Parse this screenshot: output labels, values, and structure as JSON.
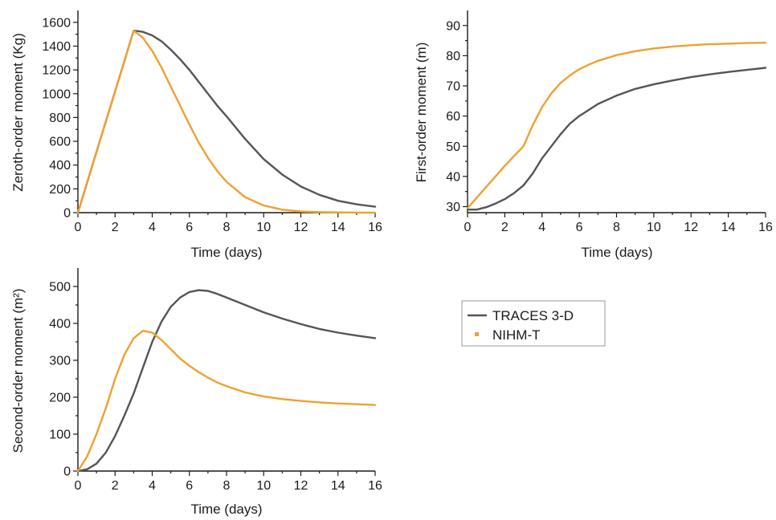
{
  "chart_data": [
    {
      "type": "line",
      "xlabel": "Time (days)",
      "ylabel": "Zeroth-order moment (Kg)",
      "xlim": [
        0,
        16
      ],
      "ylim": [
        0,
        1700
      ],
      "xticks": [
        0,
        2,
        4,
        6,
        8,
        10,
        12,
        14,
        16
      ],
      "yticks": [
        0,
        200,
        400,
        600,
        800,
        1000,
        1200,
        1400,
        1600
      ],
      "series": [
        {
          "name": "TRACES 3-D",
          "color": "#555555",
          "x": [
            0,
            1,
            2,
            3,
            3.5,
            4,
            4.5,
            5,
            5.5,
            6,
            6.5,
            7,
            7.5,
            8,
            9,
            10,
            11,
            12,
            13,
            14,
            15,
            16
          ],
          "y": [
            0,
            510,
            1020,
            1530,
            1520,
            1490,
            1440,
            1370,
            1290,
            1200,
            1100,
            1000,
            900,
            810,
            620,
            450,
            320,
            220,
            150,
            100,
            70,
            50
          ]
        },
        {
          "name": "NIHM-T",
          "color": "#F0A030",
          "x": [
            0,
            1,
            2,
            3,
            3.5,
            4,
            4.5,
            5,
            5.5,
            6,
            6.5,
            7,
            7.5,
            8,
            9,
            10,
            11,
            12,
            13,
            14,
            15,
            16
          ],
          "y": [
            0,
            510,
            1020,
            1530,
            1470,
            1360,
            1220,
            1060,
            900,
            740,
            590,
            460,
            350,
            260,
            130,
            60,
            25,
            10,
            5,
            2,
            1,
            0
          ]
        }
      ]
    },
    {
      "type": "line",
      "xlabel": "Time (days)",
      "ylabel": "First-order moment (m)",
      "xlim": [
        0,
        16
      ],
      "ylim": [
        28,
        95
      ],
      "xticks": [
        0,
        2,
        4,
        6,
        8,
        10,
        12,
        14,
        16
      ],
      "yticks": [
        30,
        40,
        50,
        60,
        70,
        80,
        90
      ],
      "series": [
        {
          "name": "TRACES 3-D",
          "color": "#555555",
          "x": [
            0,
            0.5,
            1,
            1.5,
            2,
            2.5,
            3,
            3.5,
            4,
            4.5,
            5,
            5.5,
            6,
            6.5,
            7,
            8,
            9,
            10,
            11,
            12,
            13,
            14,
            15,
            16
          ],
          "y": [
            29,
            29,
            29.8,
            31,
            32.5,
            34.5,
            37,
            41,
            46,
            50,
            54,
            57.5,
            60,
            62,
            64,
            66.8,
            69,
            70.5,
            71.8,
            72.9,
            73.8,
            74.6,
            75.3,
            76
          ]
        },
        {
          "name": "NIHM-T",
          "color": "#F0A030",
          "x": [
            0,
            0.5,
            1,
            1.5,
            2,
            2.5,
            3,
            3.5,
            4,
            4.5,
            5,
            5.5,
            6,
            6.5,
            7,
            8,
            9,
            10,
            11,
            12,
            13,
            14,
            15,
            16
          ],
          "y": [
            29.5,
            33,
            36.5,
            40,
            43.5,
            46.8,
            50,
            57,
            63,
            67.5,
            71,
            73.5,
            75.5,
            77,
            78.3,
            80.2,
            81.5,
            82.4,
            83,
            83.5,
            83.8,
            84,
            84.2,
            84.3
          ]
        }
      ]
    },
    {
      "type": "line",
      "xlabel": "Time (days)",
      "ylabel": "Second-order moment (m²)",
      "xlim": [
        0,
        16
      ],
      "ylim": [
        0,
        550
      ],
      "xticks": [
        0,
        2,
        4,
        6,
        8,
        10,
        12,
        14,
        16
      ],
      "yticks": [
        0,
        100,
        200,
        300,
        400,
        500
      ],
      "series": [
        {
          "name": "TRACES 3-D",
          "color": "#555555",
          "x": [
            0,
            0.5,
            1,
            1.5,
            2,
            2.5,
            3,
            3.5,
            4,
            4.5,
            5,
            5.5,
            6,
            6.5,
            7,
            7.5,
            8,
            9,
            10,
            11,
            12,
            13,
            14,
            15,
            16
          ],
          "y": [
            0,
            5,
            20,
            50,
            95,
            150,
            210,
            280,
            350,
            405,
            445,
            470,
            485,
            490,
            488,
            480,
            470,
            450,
            430,
            413,
            398,
            385,
            375,
            367,
            360
          ]
        },
        {
          "name": "NIHM-T",
          "color": "#F0A030",
          "x": [
            0,
            0.5,
            1,
            1.5,
            2,
            2.5,
            3,
            3.5,
            4,
            4.5,
            5,
            5.5,
            6,
            6.5,
            7,
            7.5,
            8,
            9,
            10,
            11,
            12,
            13,
            14,
            15,
            16
          ],
          "y": [
            0,
            40,
            100,
            170,
            250,
            315,
            360,
            380,
            375,
            355,
            330,
            305,
            285,
            268,
            253,
            240,
            230,
            213,
            202,
            195,
            190,
            186,
            183,
            181,
            179
          ]
        }
      ]
    }
  ],
  "legend": {
    "entries": [
      {
        "label": "TRACES 3-D",
        "color": "#555555",
        "style": "line"
      },
      {
        "label": "NIHM-T",
        "color": "#F0A030",
        "style": "marker"
      }
    ]
  }
}
